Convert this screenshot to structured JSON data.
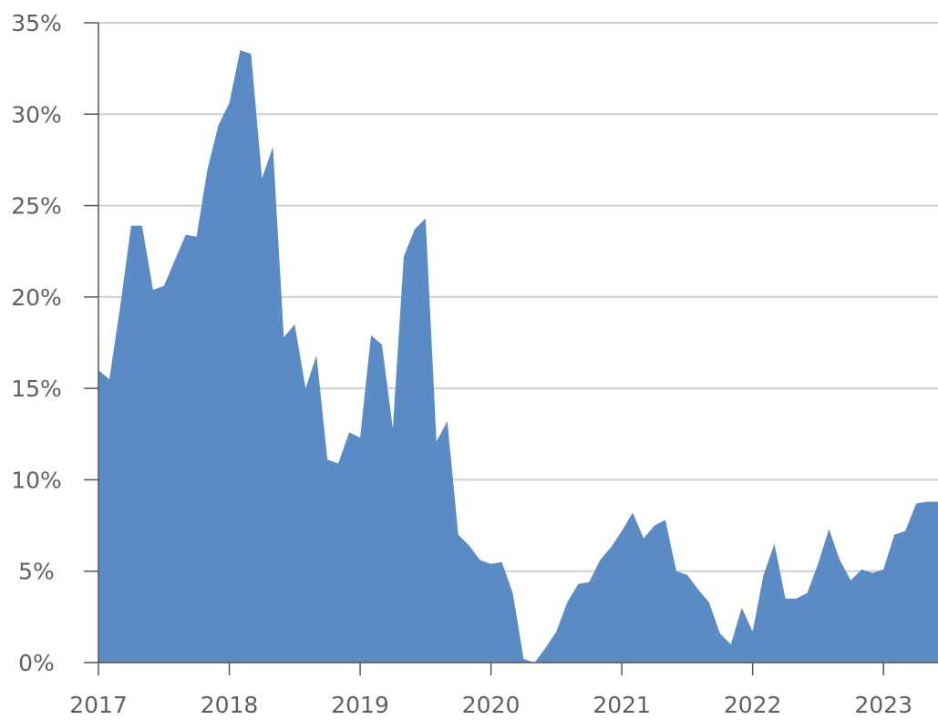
{
  "chart_data": {
    "type": "area",
    "title": "",
    "xlabel": "",
    "ylabel": "",
    "color": "#5b8bc5",
    "grid": true,
    "ylim": [
      0,
      35
    ],
    "y_ticks": [
      {
        "value": 0,
        "label": "0%"
      },
      {
        "value": 5,
        "label": "5%"
      },
      {
        "value": 10,
        "label": "10%"
      },
      {
        "value": 15,
        "label": "15%"
      },
      {
        "value": 20,
        "label": "20%"
      },
      {
        "value": 25,
        "label": "25%"
      },
      {
        "value": 30,
        "label": "30%"
      },
      {
        "value": 35,
        "label": "35%"
      }
    ],
    "x_ticks": [
      {
        "value": "2017-01",
        "label": "2017"
      },
      {
        "value": "2018-01",
        "label": "2018"
      },
      {
        "value": "2019-01",
        "label": "2019"
      },
      {
        "value": "2020-01",
        "label": "2020"
      },
      {
        "value": "2021-01",
        "label": "2021"
      },
      {
        "value": "2022-01",
        "label": "2022"
      },
      {
        "value": "2023-01",
        "label": "2023"
      }
    ],
    "xlim": [
      "2017-01",
      "2023-06"
    ],
    "series": [
      {
        "x": [
          "2017-01",
          "2017-02",
          "2017-03",
          "2017-04",
          "2017-05",
          "2017-06",
          "2017-07",
          "2017-08",
          "2017-09",
          "2017-10",
          "2017-11",
          "2017-12",
          "2018-01",
          "2018-02",
          "2018-03",
          "2018-04",
          "2018-05",
          "2018-06",
          "2018-07",
          "2018-08",
          "2018-09",
          "2018-10",
          "2018-11",
          "2018-12",
          "2019-01",
          "2019-02",
          "2019-03",
          "2019-04",
          "2019-05",
          "2019-06",
          "2019-07",
          "2019-08",
          "2019-09",
          "2019-10",
          "2019-11",
          "2019-12",
          "2020-01",
          "2020-02",
          "2020-03",
          "2020-04",
          "2020-05",
          "2020-06",
          "2020-07",
          "2020-08",
          "2020-09",
          "2020-10",
          "2020-11",
          "2020-12",
          "2021-01",
          "2021-02",
          "2021-03",
          "2021-04",
          "2021-05",
          "2021-06",
          "2021-07",
          "2021-08",
          "2021-09",
          "2021-10",
          "2021-11",
          "2021-12",
          "2022-01",
          "2022-02",
          "2022-03",
          "2022-04",
          "2022-05",
          "2022-06",
          "2022-07",
          "2022-08",
          "2022-09",
          "2022-10",
          "2022-11",
          "2022-12",
          "2023-01",
          "2023-02",
          "2023-03",
          "2023-04",
          "2023-05",
          "2023-06"
        ],
        "values": [
          16.0,
          15.5,
          19.5,
          23.9,
          23.9,
          20.4,
          20.6,
          22.0,
          23.4,
          23.3,
          27.0,
          29.4,
          30.6,
          33.5,
          33.3,
          26.5,
          28.2,
          17.8,
          18.5,
          15.0,
          16.8,
          11.1,
          10.9,
          12.6,
          12.3,
          17.9,
          17.4,
          12.8,
          22.2,
          23.7,
          24.3,
          12.1,
          13.2,
          7.0,
          6.4,
          5.6,
          5.4,
          5.5,
          3.8,
          0.2,
          0.0,
          0.8,
          1.7,
          3.3,
          4.3,
          4.4,
          5.6,
          6.3,
          7.2,
          8.2,
          6.8,
          7.5,
          7.8,
          5.0,
          4.8,
          4.0,
          3.3,
          1.6,
          1.0,
          3.0,
          1.7,
          4.8,
          6.5,
          3.5,
          3.5,
          3.8,
          5.4,
          7.3,
          5.6,
          4.5,
          5.1,
          4.9,
          5.1,
          7.0,
          7.2,
          8.7,
          8.8,
          8.8
        ]
      }
    ]
  }
}
